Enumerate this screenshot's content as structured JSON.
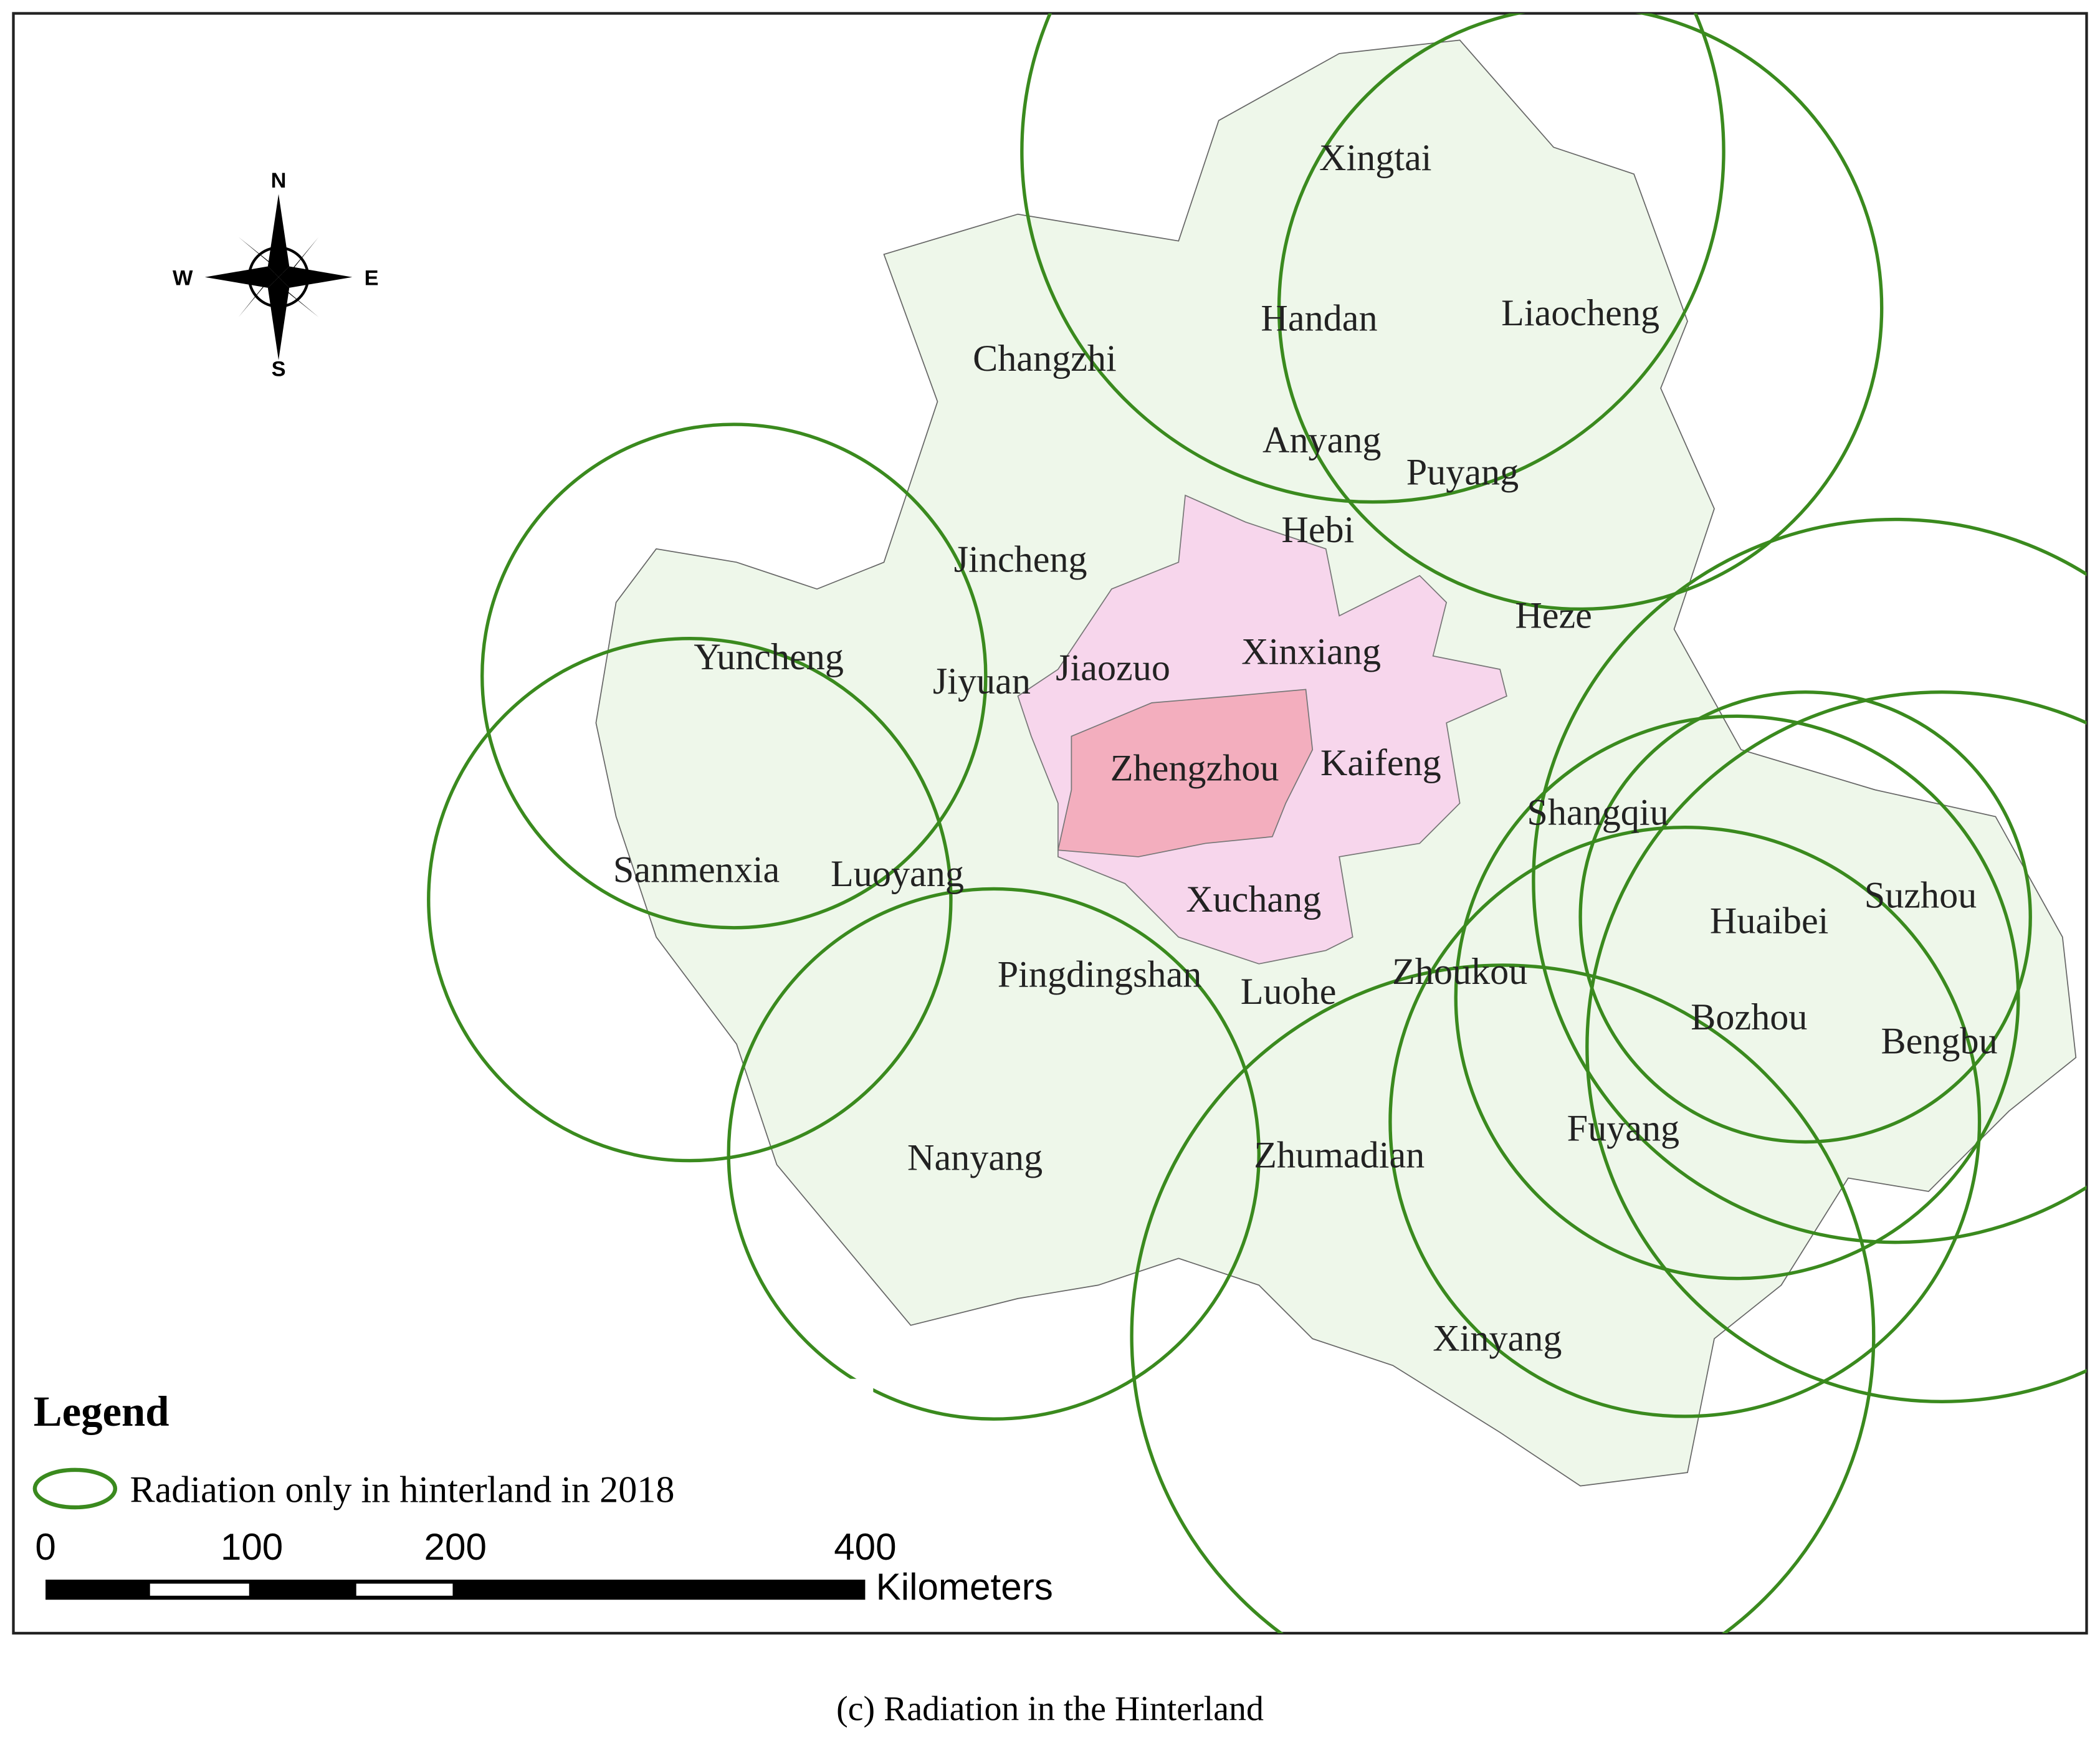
{
  "compass": {
    "north": "N",
    "east": "E",
    "south": "S",
    "west": "W"
  },
  "map": {
    "cities": [
      "Xingtai",
      "Handan",
      "Liaocheng",
      "Changzhi",
      "Anyang",
      "Puyang",
      "Hebi",
      "Jincheng",
      "Heze",
      "Yuncheng",
      "Jiyuan",
      "Jiaozuo",
      "Xinxiang",
      "Zhengzhou",
      "Kaifeng",
      "Shangqiu",
      "Sanmenxia",
      "Luoyang",
      "Xuchang",
      "Suzhou",
      "Huaibei",
      "Pingdingshan",
      "Luohe",
      "Zhoukou",
      "Bozhou",
      "Bengbu",
      "Fuyang",
      "Nanyang",
      "Zhumadian",
      "Xinyang"
    ]
  },
  "legend": {
    "title": "Legend",
    "items": [
      "Radiation only in hinterland in 2018"
    ]
  },
  "scale_bar": {
    "ticks": [
      "0",
      "100",
      "200",
      "400"
    ],
    "unit": "Kilometers"
  },
  "caption": "(c) Radiation in the Hinterland"
}
